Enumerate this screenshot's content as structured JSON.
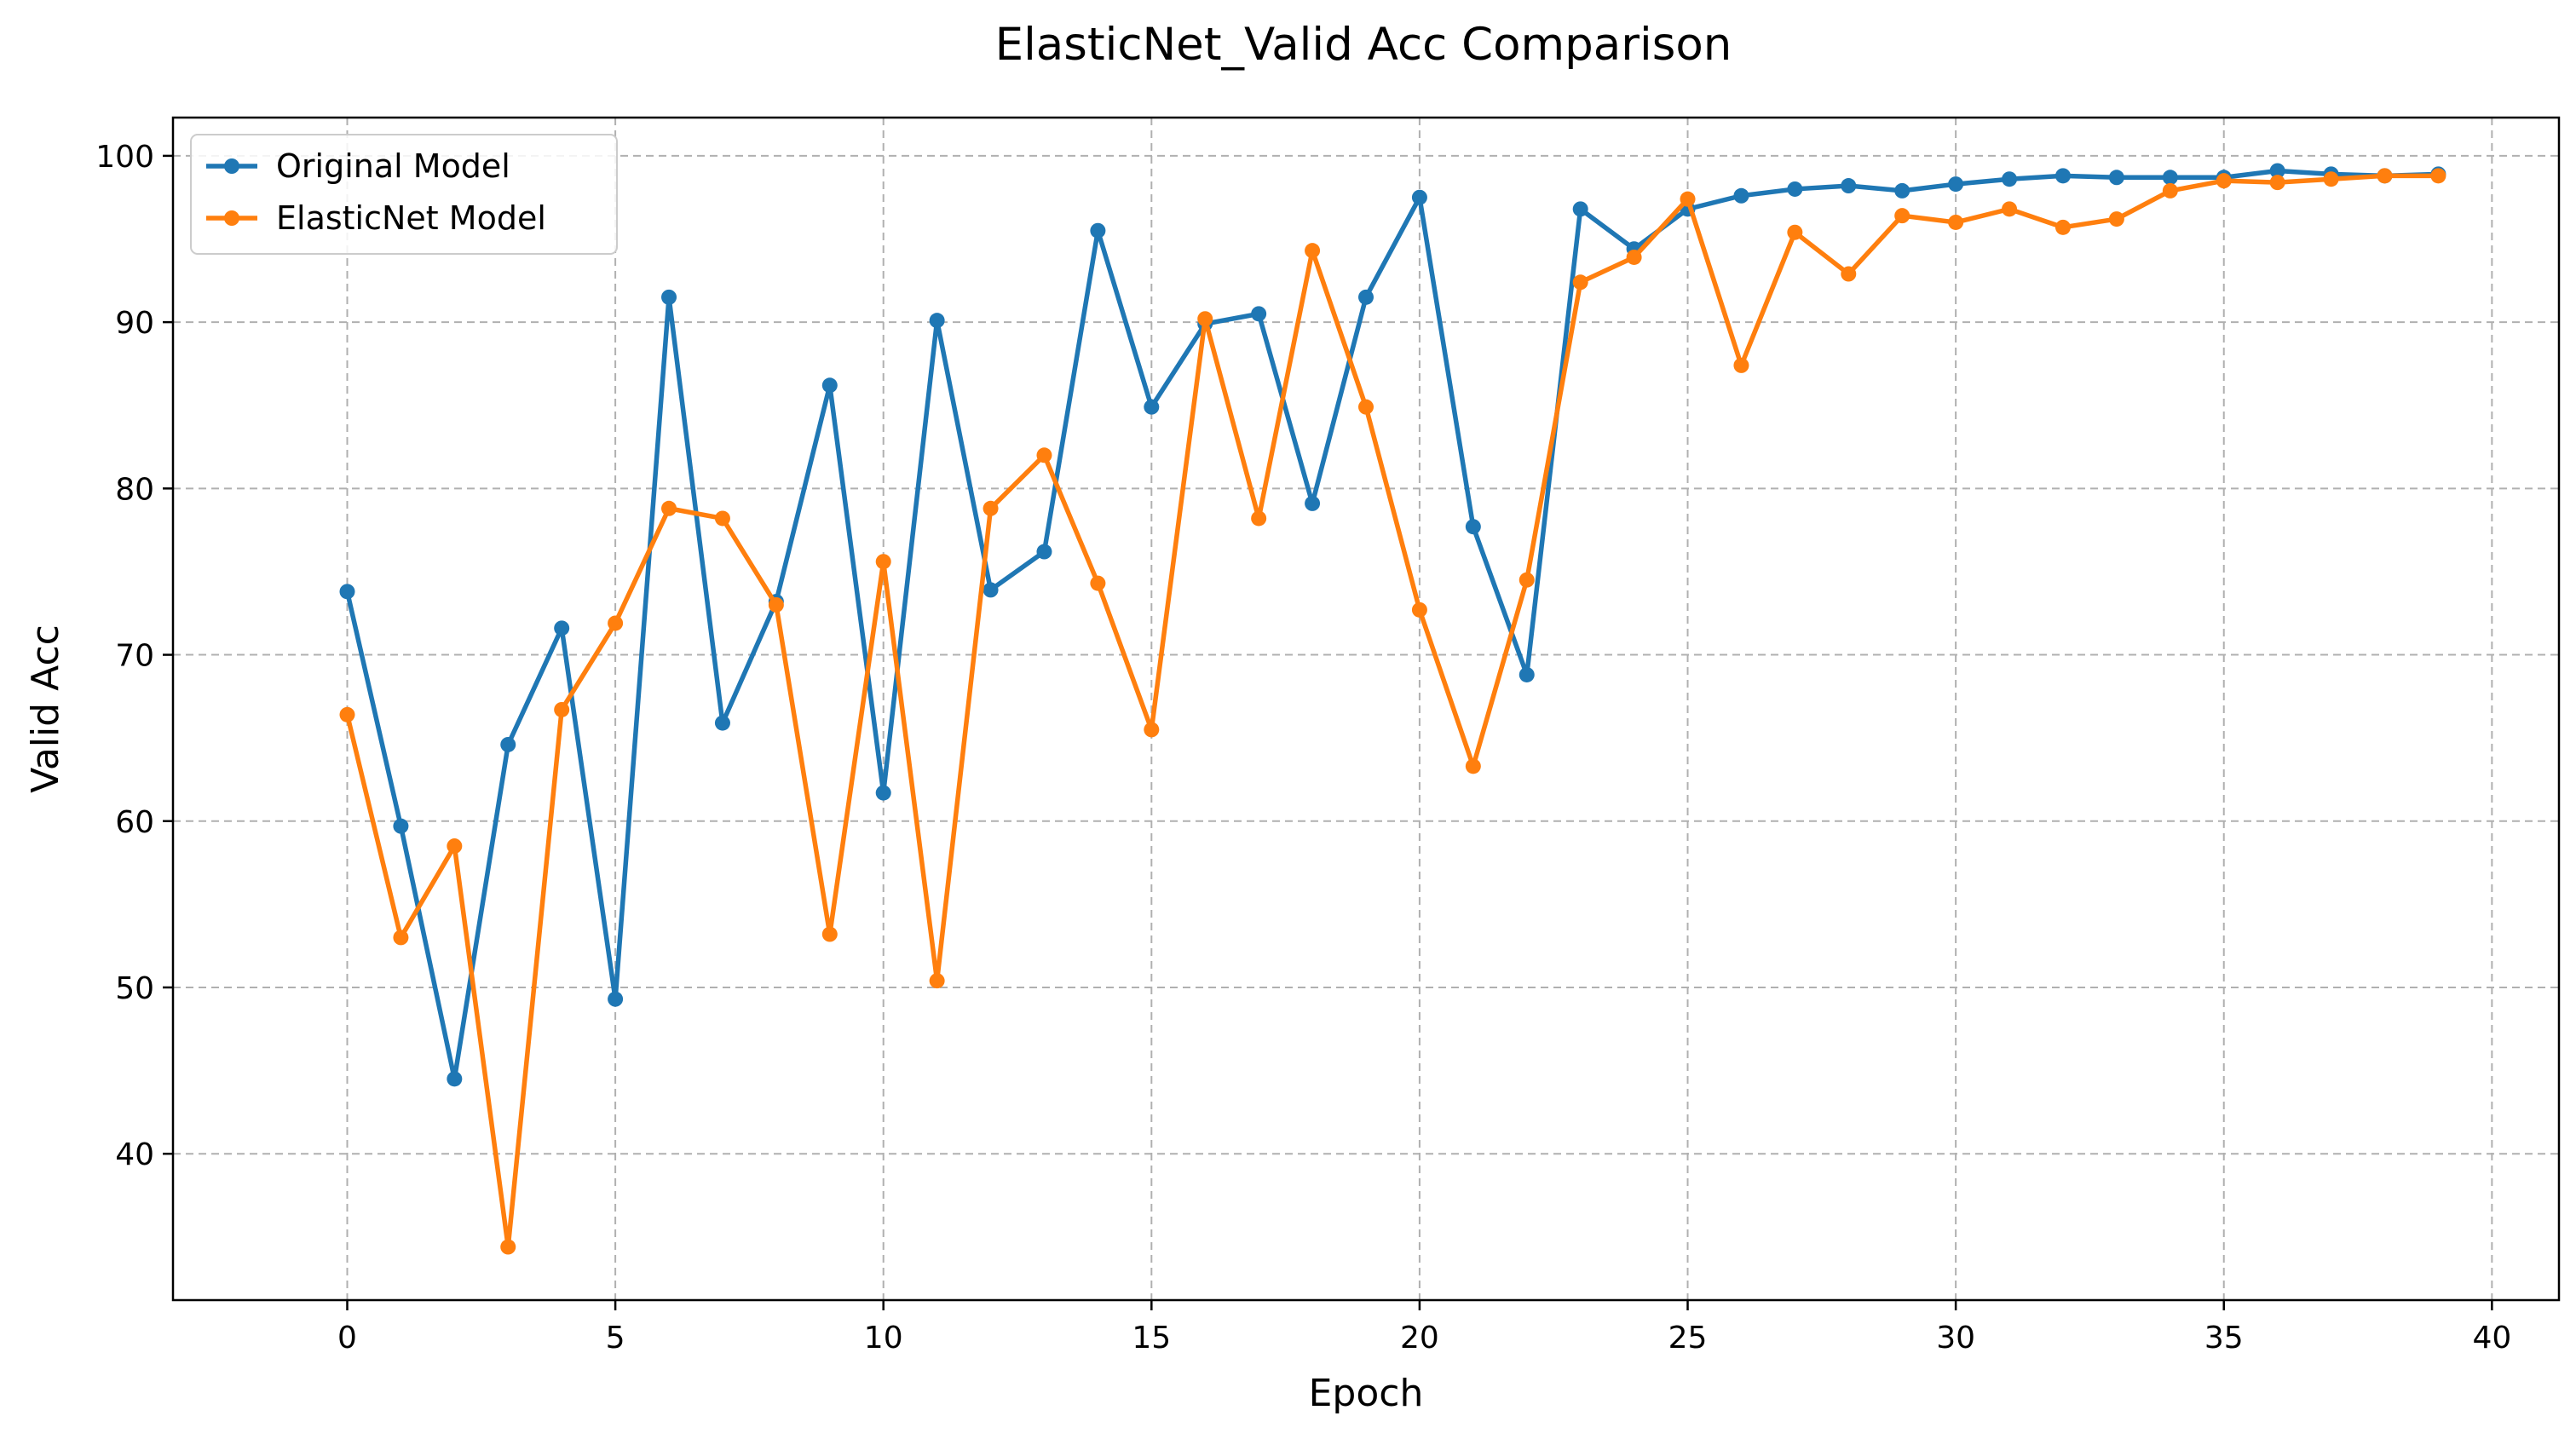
{
  "chart_data": {
    "type": "line",
    "title": "ElasticNet_Valid Acc Comparison",
    "xlabel": "Epoch",
    "ylabel": "Valid Acc",
    "xlim": [
      -3.25,
      41.25
    ],
    "ylim": [
      31.2,
      102.3
    ],
    "xticks": [
      0,
      5,
      10,
      15,
      20,
      25,
      30,
      35,
      40
    ],
    "yticks": [
      40,
      50,
      60,
      70,
      80,
      90,
      100
    ],
    "grid": true,
    "legend_position": "upper left",
    "x": [
      0,
      1,
      2,
      3,
      4,
      5,
      6,
      7,
      8,
      9,
      10,
      11,
      12,
      13,
      14,
      15,
      16,
      17,
      18,
      19,
      20,
      21,
      22,
      23,
      24,
      25,
      26,
      27,
      28,
      29,
      30,
      31,
      32,
      33,
      34,
      35,
      36,
      37,
      38,
      39
    ],
    "series": [
      {
        "name": "Original Model",
        "color": "#1f77b4",
        "values": [
          73.8,
          59.7,
          44.5,
          64.6,
          71.6,
          49.3,
          91.5,
          65.9,
          73.2,
          86.2,
          61.7,
          90.1,
          73.9,
          76.2,
          95.5,
          84.9,
          89.9,
          90.5,
          79.1,
          91.5,
          97.5,
          77.7,
          68.8,
          96.8,
          94.4,
          96.8,
          97.6,
          98.0,
          98.2,
          97.9,
          98.3,
          98.6,
          98.8,
          98.7,
          98.7,
          98.7,
          99.1,
          98.9,
          98.8,
          98.9
        ]
      },
      {
        "name": "ElasticNet Model",
        "color": "#ff7f0e",
        "values": [
          66.4,
          53.0,
          58.5,
          34.4,
          66.7,
          71.9,
          78.8,
          78.2,
          73.0,
          53.2,
          75.6,
          50.4,
          78.8,
          82.0,
          74.3,
          65.5,
          90.2,
          78.2,
          94.3,
          84.9,
          72.7,
          63.3,
          74.5,
          92.4,
          93.9,
          97.4,
          87.4,
          95.4,
          92.9,
          96.4,
          96.0,
          96.8,
          95.7,
          96.2,
          97.9,
          98.5,
          98.4,
          98.6,
          98.8,
          98.8
        ]
      }
    ]
  }
}
